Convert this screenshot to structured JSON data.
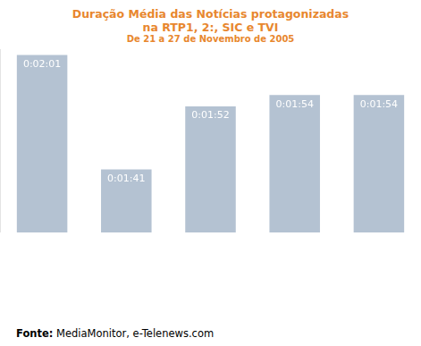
{
  "chart_data": {
    "type": "bar",
    "title": "Duração Média das Notícias protagonizadas\nna RTP1, 2:, SIC e TVI",
    "subtitle": "De 21 a 27 de Novembro de 2005",
    "source": "Fonte: MediaMonitor, e-Telenews.com",
    "categories": [
      null,
      null,
      null,
      null,
      null
    ],
    "values": [
      121,
      101,
      112,
      114,
      114
    ],
    "value_labels": [
      "0:02:01",
      "0:01:41",
      "0:01:52",
      "0:01:54",
      "0:01:54"
    ],
    "data_labels": true,
    "color": "#b4c2d2",
    "ylim": [
      90,
      122
    ],
    "tick_labels": false,
    "grid": false
  }
}
